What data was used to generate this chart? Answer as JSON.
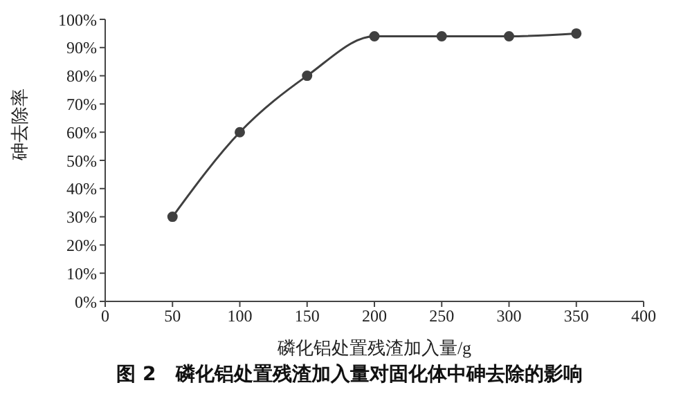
{
  "chart_data": {
    "type": "line",
    "title": "图 2　磷化铝处置残渣加入量对固化体中砷去除的影响",
    "xlabel": "磷化铝处置残渣加入量/g",
    "ylabel": "砷去除率",
    "x": [
      50,
      100,
      150,
      200,
      250,
      300,
      350
    ],
    "series": [
      {
        "color": "#404040",
        "values": [
          30,
          60,
          80,
          94,
          94,
          94,
          95
        ]
      }
    ],
    "xlim": [
      0,
      400
    ],
    "xticks": [
      0,
      50,
      100,
      150,
      200,
      250,
      300,
      350,
      400
    ],
    "ylim": [
      0,
      100
    ],
    "yticks": [
      {
        "value": 0,
        "label": "0%"
      },
      {
        "value": 10,
        "label": "10%"
      },
      {
        "value": 20,
        "label": "20%"
      },
      {
        "value": 30,
        "label": "30%"
      },
      {
        "value": 40,
        "label": "40%"
      },
      {
        "value": 50,
        "label": "50%"
      },
      {
        "value": 60,
        "label": "60%"
      },
      {
        "value": 70,
        "label": "70%"
      },
      {
        "value": 80,
        "label": "80%"
      },
      {
        "value": 90,
        "label": "90%"
      },
      {
        "value": 100,
        "label": "100%"
      }
    ],
    "marker": "circle",
    "line_style": "solid",
    "grid": false,
    "legend": false
  }
}
